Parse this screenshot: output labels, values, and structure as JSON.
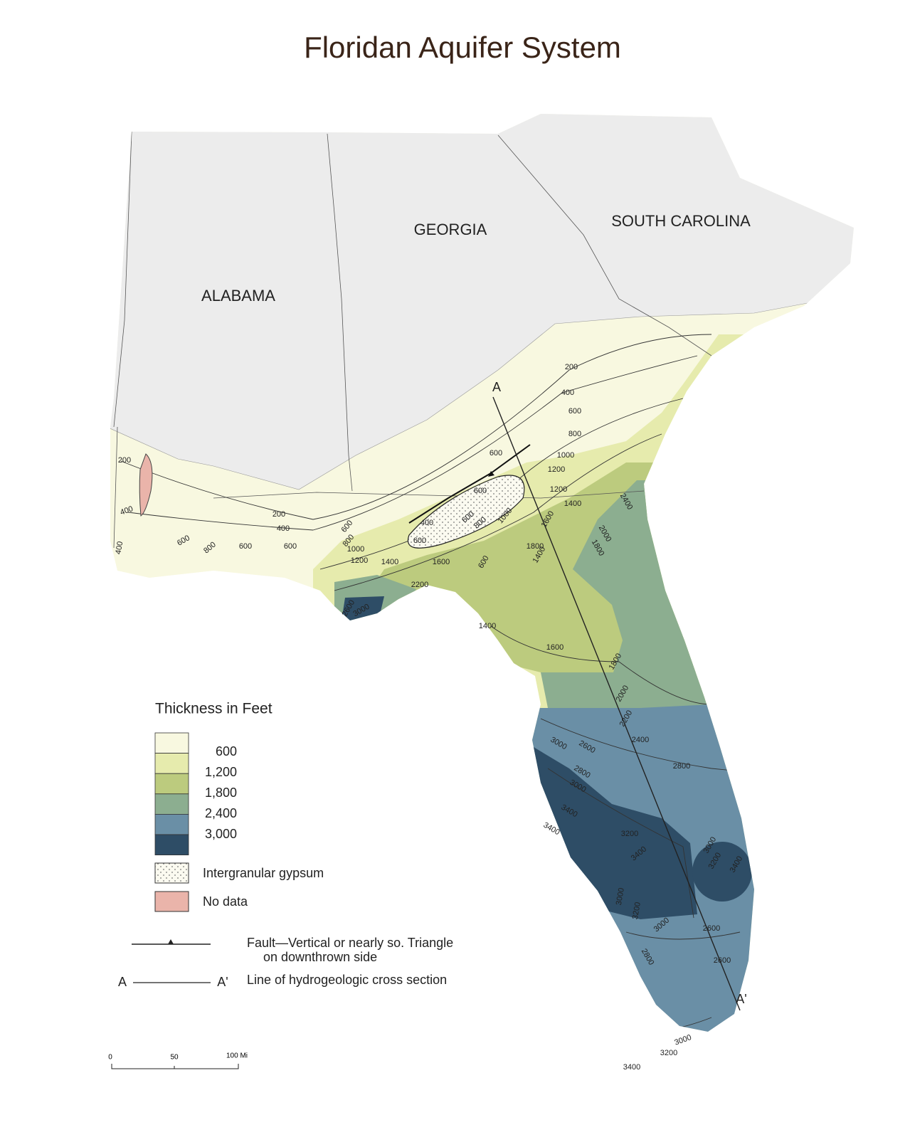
{
  "title": "Floridan Aquifer System",
  "states": [
    "ALABAMA",
    "GEORGIA",
    "SOUTH CAROLINA"
  ],
  "legend": {
    "title": "Thickness in Feet",
    "colors": [
      "#f8f8e0",
      "#e6ebad",
      "#bccb7e",
      "#8cae90",
      "#6a8fa6",
      "#2e4d66"
    ],
    "breaks": [
      "600",
      "1,200",
      "1,800",
      "2,400",
      "3,000"
    ],
    "gypsum": "Intergranular gypsum",
    "no_data": "No data",
    "fault": [
      "Fault—Vertical or nearly so. Triangle",
      "on downthrown side"
    ],
    "section": {
      "start": "A",
      "end": "A'",
      "label": "Line of hydrogeologic cross section"
    }
  },
  "cross_section": {
    "start": "A",
    "end": "A'"
  },
  "contour_labels": [
    "200",
    "400",
    "400",
    "200",
    "400",
    "600",
    "800",
    "600",
    "600",
    "600",
    "800",
    "1000",
    "1200",
    "1400",
    "1600",
    "2200",
    "2600",
    "3000",
    "1400",
    "1600",
    "600",
    "400",
    "600",
    "600",
    "600",
    "800",
    "1000",
    "600",
    "200",
    "400",
    "600",
    "800",
    "1000",
    "1200",
    "1200",
    "1400",
    "1600",
    "1800",
    "1400",
    "2000",
    "1800",
    "2400",
    "1800",
    "2000",
    "2200",
    "2400",
    "2600",
    "2800",
    "2800",
    "3000",
    "3000",
    "3400",
    "3400",
    "3200",
    "3400",
    "3000",
    "3200",
    "3400",
    "3000",
    "3200",
    "3000",
    "2600",
    "2800",
    "2600",
    "3000",
    "3200",
    "3400"
  ],
  "scale": [
    "0",
    "50",
    "100 Mi"
  ]
}
